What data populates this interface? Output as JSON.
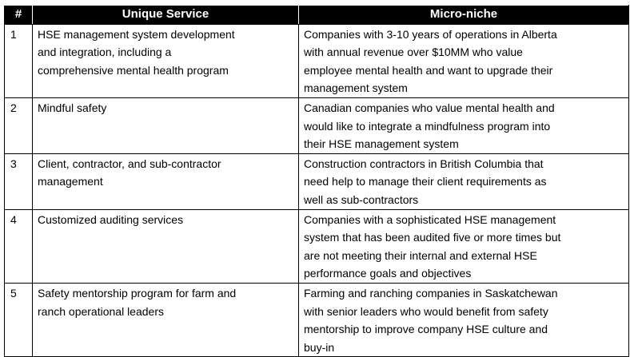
{
  "headers": {
    "num": "#",
    "service": "Unique Service",
    "niche": "Micro-niche"
  },
  "rows": [
    {
      "num": "1",
      "service": "HSE management system development\nand integration, including a\ncomprehensive mental health program",
      "niche": "Companies with 3-10 years of operations in Alberta\nwith annual revenue over $10MM who value\nemployee mental health and want to upgrade their\nmanagement system"
    },
    {
      "num": "2",
      "service": "Mindful safety",
      "niche": "Canadian companies who value mental health and\nwould like to integrate a mindfulness program into\ntheir HSE management system"
    },
    {
      "num": "3",
      "service": "Client, contractor, and sub-contractor\nmanagement",
      "niche": "Construction contractors in British Columbia that\nneed help to manage their client requirements as\nwell as sub-contractors"
    },
    {
      "num": "4",
      "service": "Customized auditing services",
      "niche": "Companies with a sophisticated HSE management\nsystem that has been audited five or more times but\nare not meeting their internal and external HSE\nperformance goals and objectives"
    },
    {
      "num": "5",
      "service": "Safety mentorship program for farm and\nranch operational leaders",
      "niche": "Farming and ranching companies in Saskatchewan\nwith senior leaders who would benefit from safety\nmentorship to improve company HSE culture and\nbuy-in"
    }
  ]
}
